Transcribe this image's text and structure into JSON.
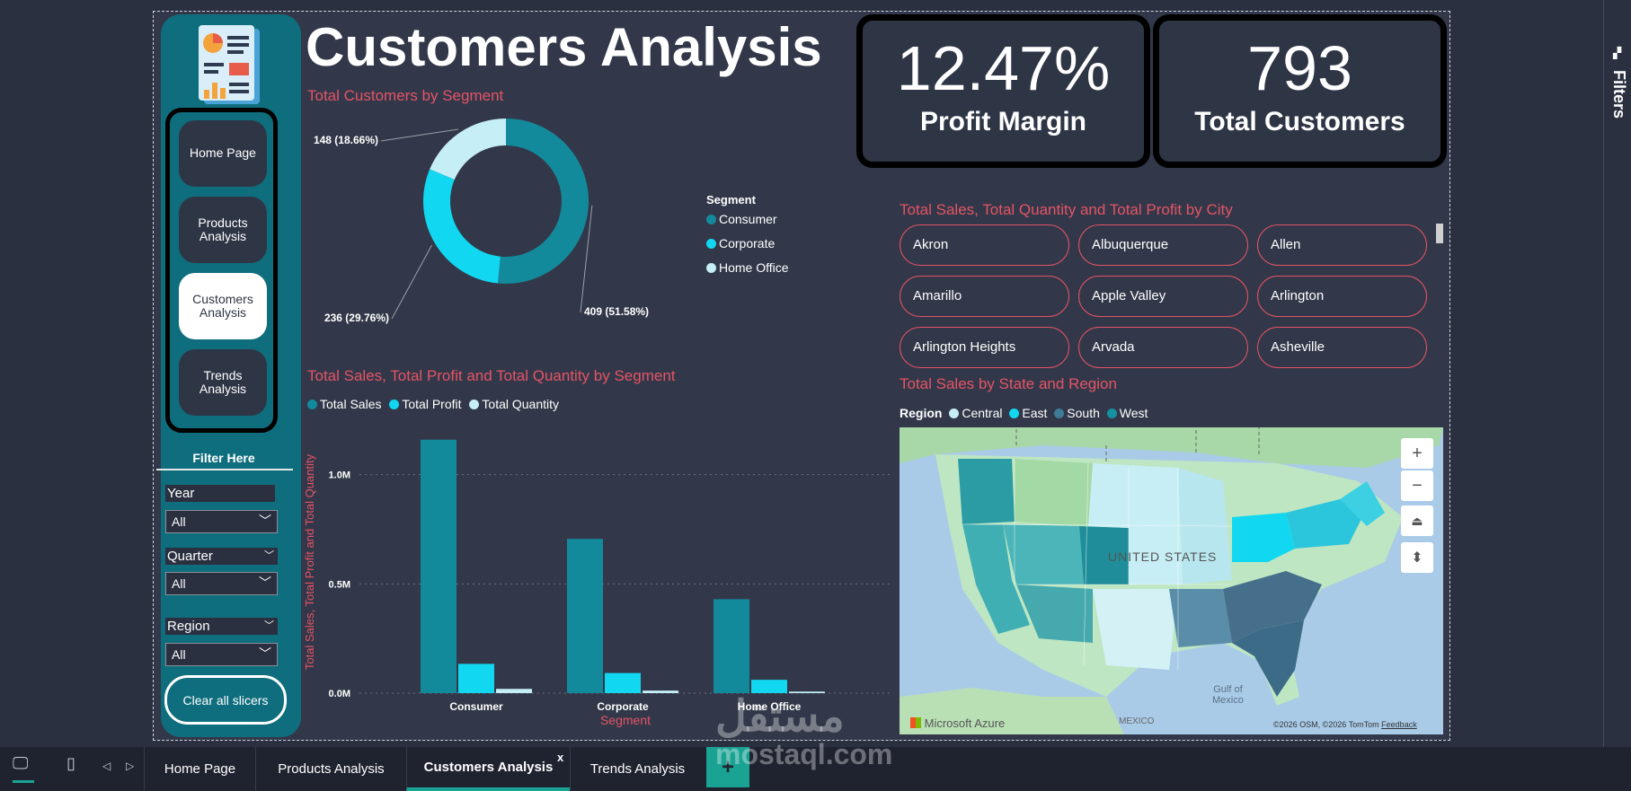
{
  "page_title": "Customers Analysis",
  "nav": {
    "items": [
      {
        "label": "Home Page"
      },
      {
        "label": "Products\nAnalysis"
      },
      {
        "label": "Customers\nAnalysis"
      },
      {
        "label": "Trends\nAnalysis"
      }
    ],
    "active": "Customers Analysis"
  },
  "filters": {
    "title": "Filter Here",
    "year_label": "Year",
    "year_value": "All",
    "quarter_label": "Quarter",
    "quarter_value": "All",
    "region_label": "Region",
    "region_value": "All",
    "clear_label": "Clear all slicers"
  },
  "kpis": {
    "profit_margin_value": "12.47%",
    "profit_margin_label": "Profit Margin",
    "total_customers_value": "793",
    "total_customers_label": "Total Customers"
  },
  "donut": {
    "title": "Total Customers by Segment",
    "legend_title": "Segment",
    "labels": {
      "consumer": "409 (51.58%)",
      "corporate": "236 (29.76%)",
      "home_office": "148 (18.66%)"
    }
  },
  "bar": {
    "title": "Total Sales, Total Profit and Total Quantity by Segment",
    "xlabel": "Segment",
    "ylabel": "Total Sales, Total Profit and Total Quantity",
    "ticks": [
      "1.0M",
      "0.5M",
      "0.0M"
    ]
  },
  "city": {
    "title": "Total Sales, Total Quantity and Total Profit by City",
    "items": [
      "Akron",
      "Albuquerque",
      "Allen",
      "Amarillo",
      "Apple Valley",
      "Arlington",
      "Arlington Heights",
      "Arvada",
      "Asheville"
    ]
  },
  "map": {
    "title": "Total Sales by State and Region",
    "legend_title": "Region",
    "regions": [
      {
        "name": "Central",
        "color": "#c7eef5"
      },
      {
        "name": "East",
        "color": "#12d7f0"
      },
      {
        "name": "South",
        "color": "#3e7b96"
      },
      {
        "name": "West",
        "color": "#14919f"
      }
    ],
    "country_label": "UNITED STATES",
    "gulf_label": "Gulf of\nMexico",
    "mexico_label": "MEXICO",
    "brand": "Microsoft Azure",
    "copyright": "©2026 OSM, ©2026 TomTom",
    "feedback": "Feedback",
    "controls": [
      "+",
      "−",
      "⏏",
      "⬍"
    ]
  },
  "right_pane": {
    "label": "Filters"
  },
  "tabs": [
    {
      "label": "Home Page"
    },
    {
      "label": "Products Analysis"
    },
    {
      "label": "Customers Analysis"
    },
    {
      "label": "Trends Analysis"
    }
  ],
  "tab_close": "x",
  "add_tab": "+",
  "watermark": {
    "arabic": "مستقل",
    "latin": "mostaql.com"
  },
  "colors": {
    "consumer": "#138a9c",
    "corporate": "#12d7f0",
    "home_office": "#c6eef6",
    "accent_title": "#e45466",
    "sidebar": "#0f6e7e"
  },
  "chart_data": [
    {
      "type": "pie",
      "title": "Total Customers by Segment",
      "legend_title": "Segment",
      "categories": [
        "Consumer",
        "Corporate",
        "Home Office"
      ],
      "values": [
        409,
        236,
        148
      ],
      "percentages": [
        51.58,
        29.76,
        18.66
      ]
    },
    {
      "type": "bar",
      "title": "Total Sales, Total Profit and Total Quantity by Segment",
      "xlabel": "Segment",
      "ylabel": "Total Sales, Total Profit and Total Quantity",
      "categories": [
        "Consumer",
        "Corporate",
        "Home Office"
      ],
      "series": [
        {
          "name": "Total Sales",
          "values": [
            1160000,
            706000,
            430000
          ]
        },
        {
          "name": "Total Profit",
          "values": [
            134000,
            92000,
            61000
          ]
        },
        {
          "name": "Total Quantity",
          "values": [
            19500,
            11600,
            7000
          ]
        }
      ],
      "ylim": [
        0,
        1200000
      ],
      "yticks": [
        0,
        500000,
        1000000
      ],
      "grid": true,
      "legend_position": "top-left"
    }
  ]
}
